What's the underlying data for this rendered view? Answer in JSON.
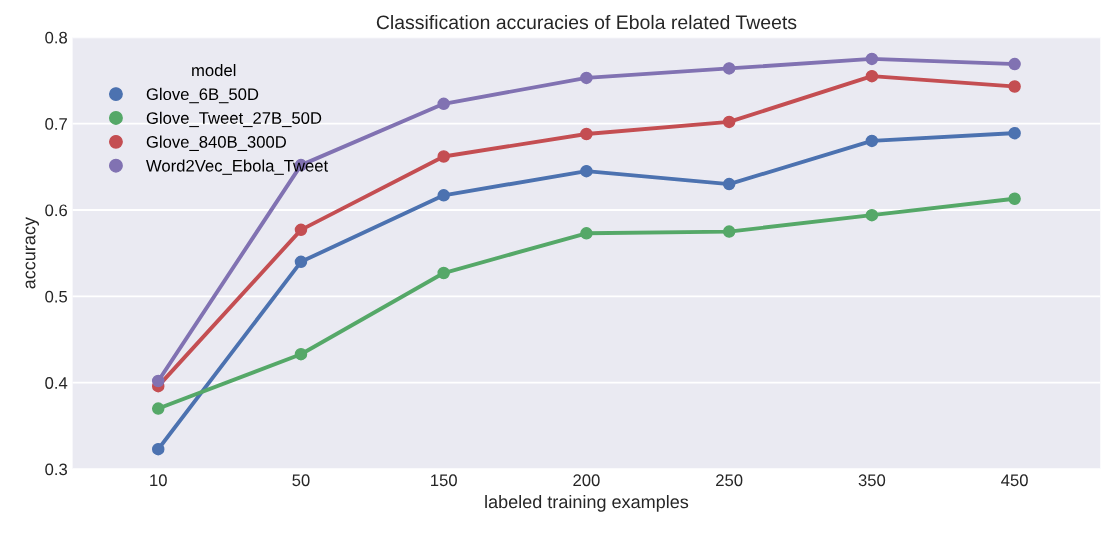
{
  "chart_data": {
    "type": "line",
    "title": "Classification accuracies of Ebola related Tweets",
    "xlabel": "labeled training examples",
    "ylabel": "accuracy",
    "legend_title": "model",
    "categories": [
      "10",
      "50",
      "150",
      "200",
      "250",
      "350",
      "450"
    ],
    "series": [
      {
        "name": "Glove_6B_50D",
        "color": "#4c72b0",
        "values": [
          0.323,
          0.54,
          0.617,
          0.645,
          0.63,
          0.68,
          0.689
        ]
      },
      {
        "name": "Glove_Tweet_27B_50D",
        "color": "#55a868",
        "values": [
          0.37,
          0.433,
          0.527,
          0.573,
          0.575,
          0.594,
          0.613
        ]
      },
      {
        "name": "Glove_840B_300D",
        "color": "#c44e52",
        "values": [
          0.396,
          0.577,
          0.662,
          0.688,
          0.702,
          0.755,
          0.743
        ]
      },
      {
        "name": "Word2Vec_Ebola_Tweet",
        "color": "#8172b2",
        "values": [
          0.402,
          0.652,
          0.723,
          0.753,
          0.764,
          0.775,
          0.769
        ]
      }
    ],
    "ylim": [
      0.3,
      0.8
    ],
    "yticks": [
      0.3,
      0.4,
      0.5,
      0.6,
      0.7,
      0.8
    ],
    "grid": "y",
    "legend": "top left",
    "marker": "circle",
    "line_style": "solid"
  }
}
